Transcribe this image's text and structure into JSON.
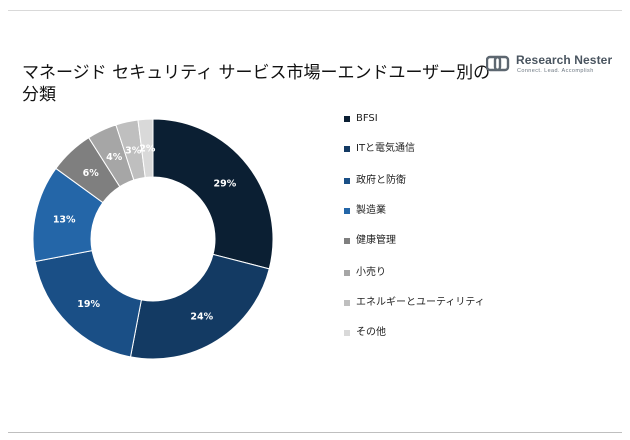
{
  "title": "マネージド セキュリティ サービス市場ーエンドユーザー別の分類",
  "logo": {
    "name": "Research Nester",
    "tagline": "Connect. Lead. Accomplish"
  },
  "chart_data": {
    "type": "pie",
    "donut": true,
    "legend_position": "right",
    "categories": [
      "BFSI",
      "ITと電気通信",
      "政府と防衛",
      "製造業",
      "健康管理",
      "小売り",
      "エネルギーとユーティリティ",
      "その他"
    ],
    "values": [
      29,
      24,
      19,
      13,
      6,
      4,
      3,
      2
    ],
    "labels": [
      "29%",
      "24%",
      "19%",
      "13%",
      "6%",
      "4%",
      "3%",
      "2%"
    ],
    "colors": [
      "#0b1f33",
      "#133a63",
      "#1a4f86",
      "#2466a8",
      "#7f7f7f",
      "#a6a6a6",
      "#bfbfbf",
      "#d9d9d9"
    ]
  }
}
